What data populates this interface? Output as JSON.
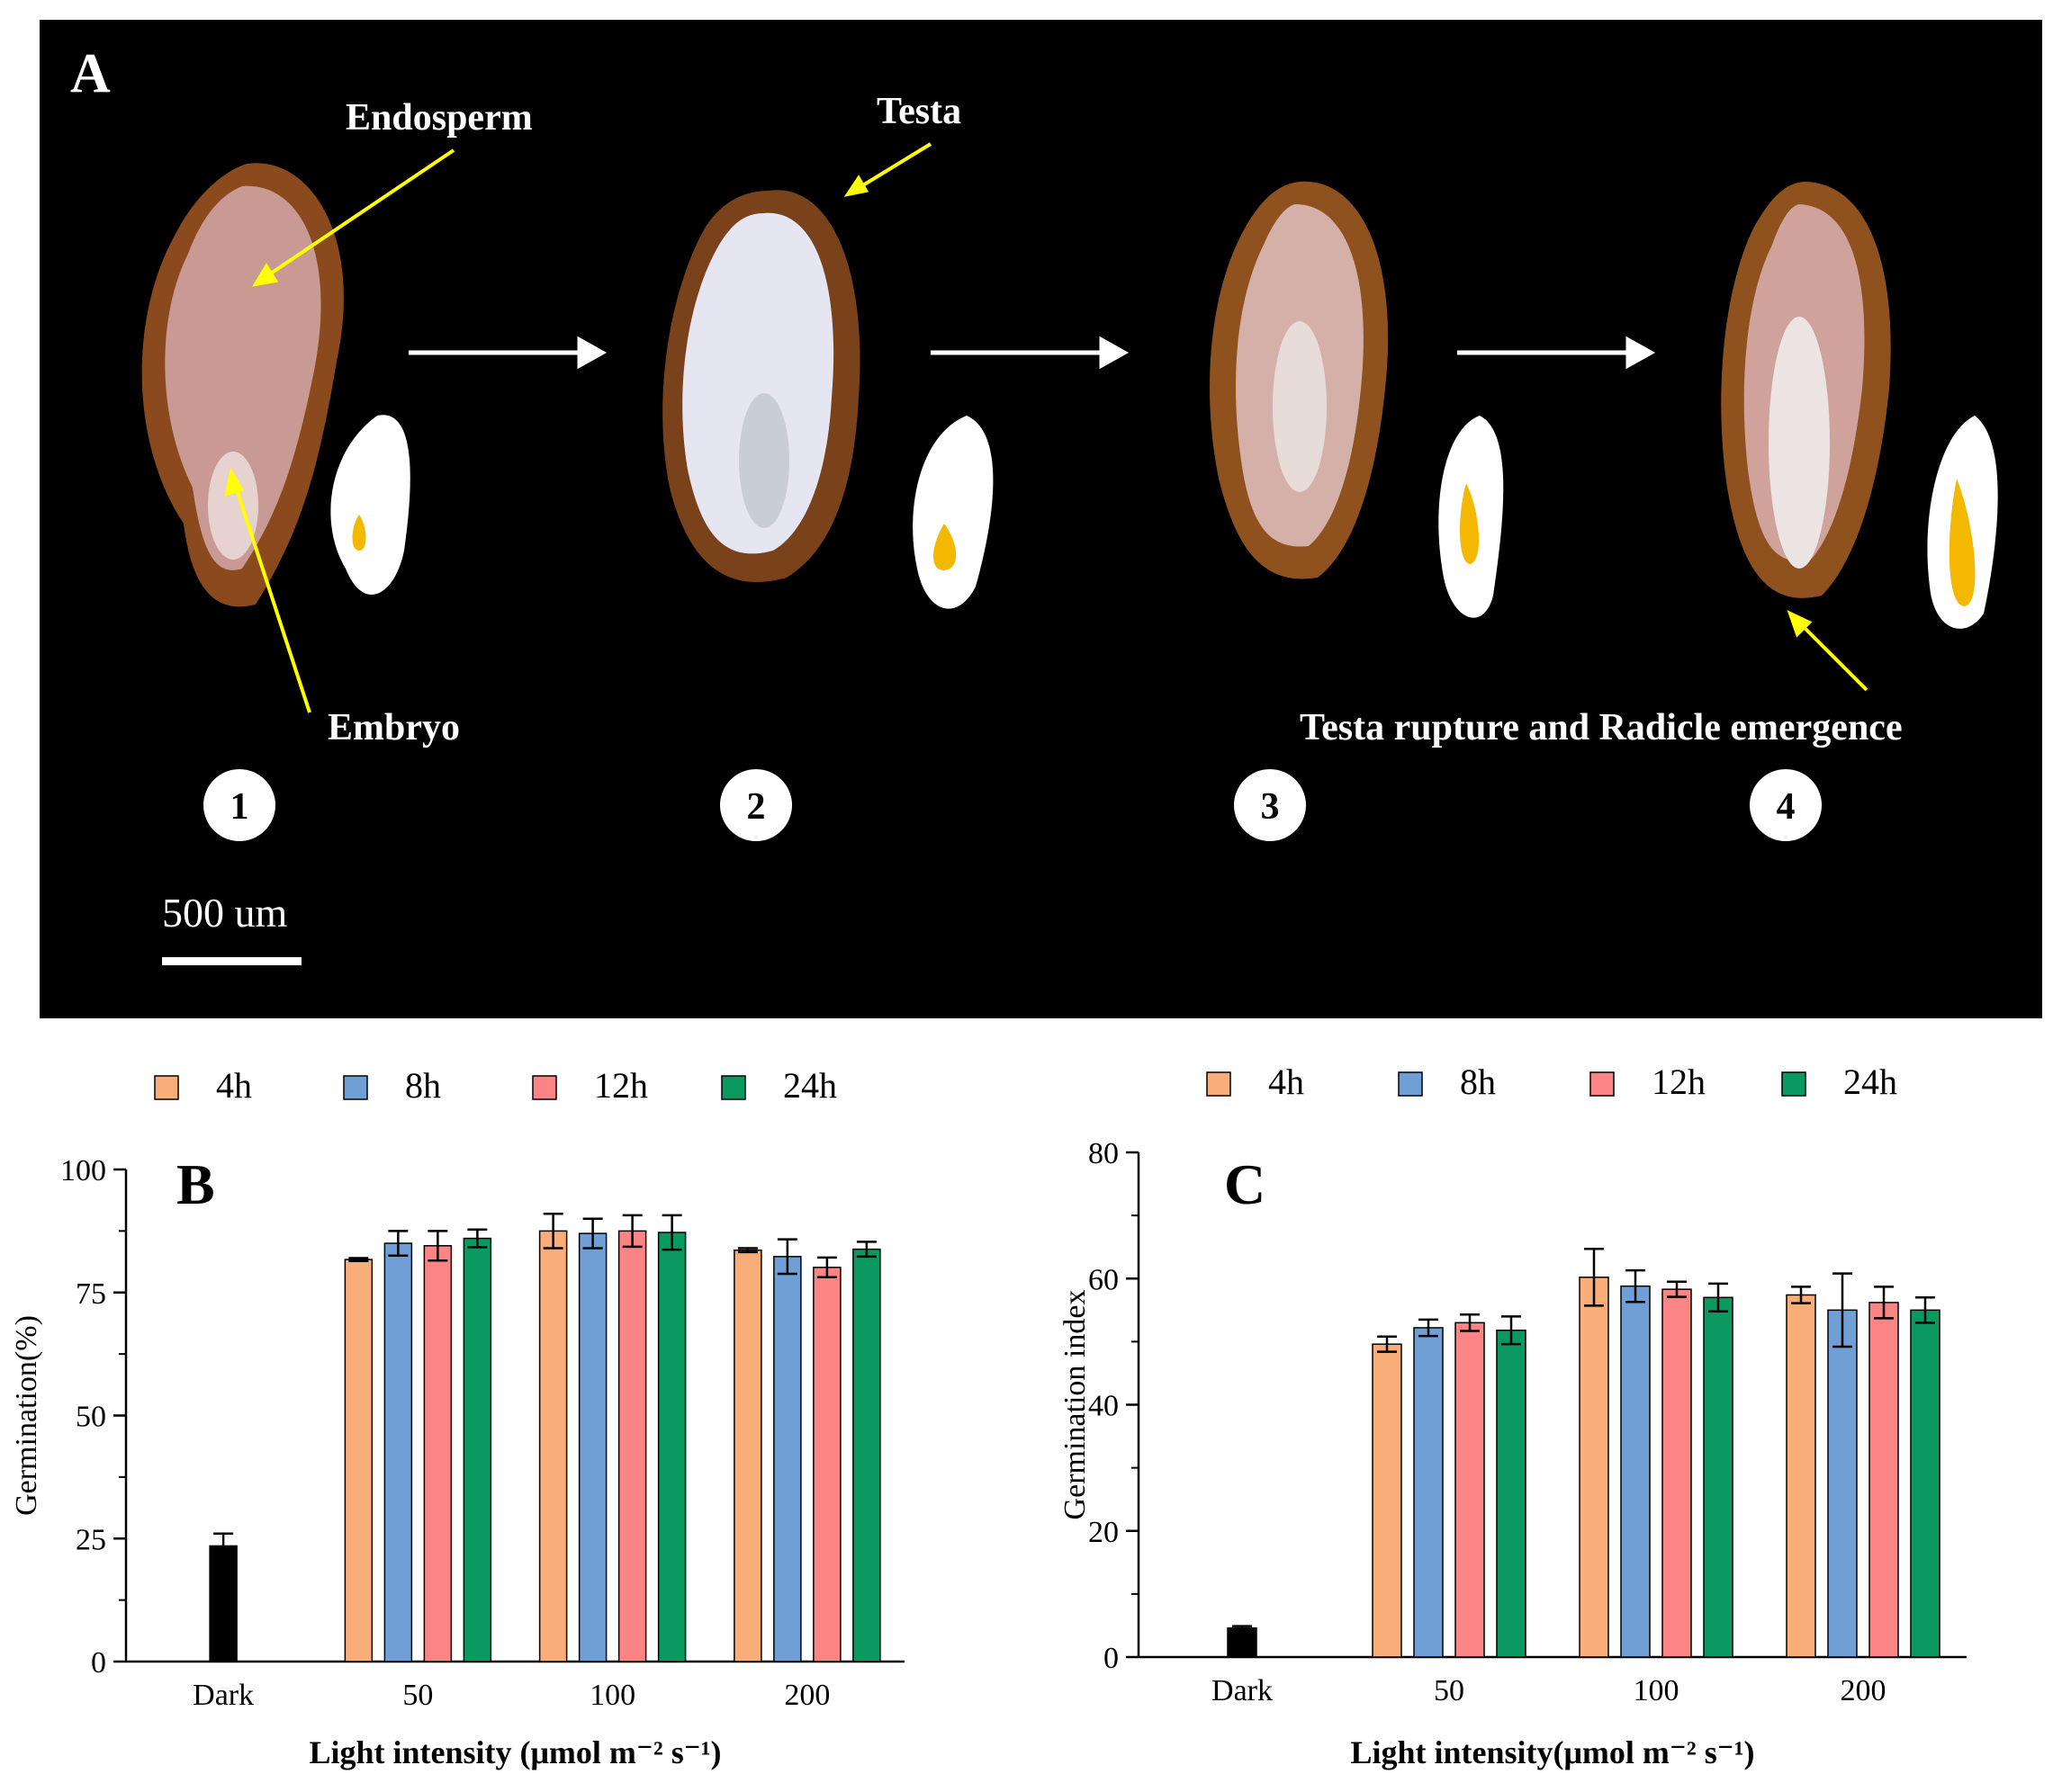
{
  "figure": {
    "panel_a": {
      "letter": "A",
      "labels": {
        "endosperm": "Endosperm",
        "testa": "Testa",
        "embryo": "Embryo",
        "rupture": "Testa rupture and Radicle emergence"
      },
      "stages": [
        "1",
        "2",
        "3",
        "4"
      ],
      "scale_bar": "500 um"
    },
    "legend": [
      "4h",
      "8h",
      "12h",
      "24h"
    ],
    "colors": {
      "dark": "#000000",
      "4h": "#F9AD79",
      "8h": "#6F9FD5",
      "12h": "#FA8584",
      "24h": "#0B9960",
      "background_a": "#000000",
      "arrow_label": "#FFFF00",
      "embryo_icon": "#F5B800"
    }
  },
  "chart_data": [
    {
      "type": "bar",
      "panel": "B",
      "ylabel": "Germination(%)",
      "xlabel": "Light intensity (μmol m⁻² s⁻¹)",
      "ylim": [
        0,
        100
      ],
      "yticks": [
        "0",
        "25",
        "50",
        "75",
        "100"
      ],
      "categories": [
        "Dark",
        "50",
        "100",
        "200"
      ],
      "dark": {
        "value": 23.5,
        "error": 2.5
      },
      "series": [
        {
          "name": "4h",
          "values": [
            null,
            81.7,
            87.5,
            83.6
          ],
          "errors": [
            null,
            0.3,
            3.5,
            0.4
          ]
        },
        {
          "name": "8h",
          "values": [
            null,
            85.0,
            87.0,
            82.3
          ],
          "errors": [
            null,
            2.5,
            3.0,
            3.5
          ]
        },
        {
          "name": "12h",
          "values": [
            null,
            84.5,
            87.5,
            80.1
          ],
          "errors": [
            null,
            3.0,
            3.2,
            2.0
          ]
        },
        {
          "name": "24h",
          "values": [
            null,
            86.0,
            87.2,
            83.8
          ],
          "errors": [
            null,
            1.8,
            3.5,
            1.5
          ]
        }
      ]
    },
    {
      "type": "bar",
      "panel": "C",
      "ylabel": "Germination index",
      "xlabel": "Light intensity(μmol m⁻² s⁻¹)",
      "ylim": [
        0,
        80
      ],
      "yticks": [
        "0",
        "20",
        "40",
        "60",
        "80"
      ],
      "categories": [
        "Dark",
        "50",
        "100",
        "200"
      ],
      "dark": {
        "value": 4.6,
        "error": 0.3
      },
      "series": [
        {
          "name": "4h",
          "values": [
            null,
            49.6,
            60.2,
            57.4
          ],
          "errors": [
            null,
            1.2,
            4.5,
            1.3
          ]
        },
        {
          "name": "8h",
          "values": [
            null,
            52.2,
            58.8,
            55.0
          ],
          "errors": [
            null,
            1.3,
            2.5,
            5.8
          ]
        },
        {
          "name": "12h",
          "values": [
            null,
            53.0,
            58.3,
            56.2
          ],
          "errors": [
            null,
            1.3,
            1.2,
            2.5
          ]
        },
        {
          "name": "24h",
          "values": [
            null,
            51.8,
            57.0,
            55.0
          ],
          "errors": [
            null,
            2.2,
            2.2,
            2.0
          ]
        }
      ]
    }
  ]
}
